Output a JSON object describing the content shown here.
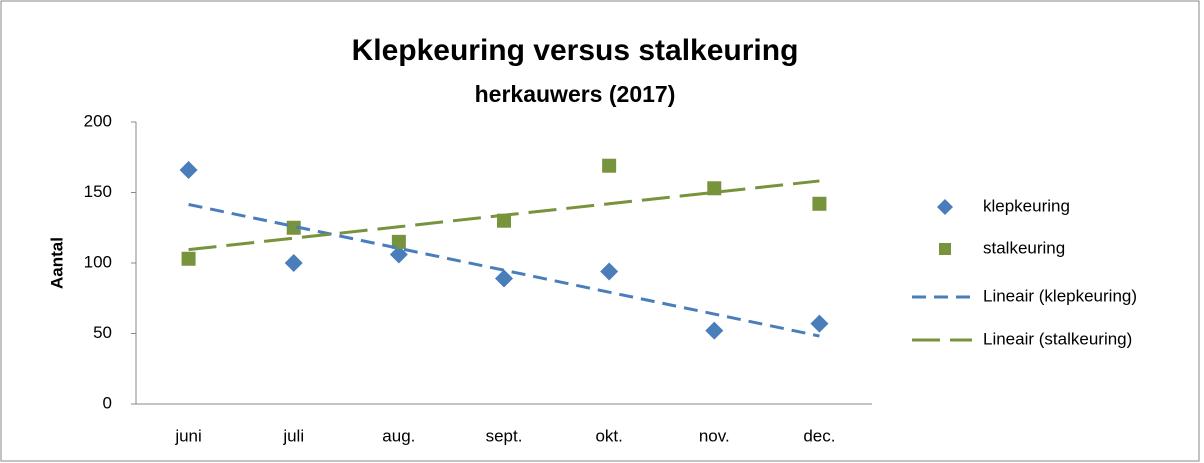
{
  "chart_data": {
    "type": "scatter",
    "title": "Klepkeuring versus stalkeuring",
    "subtitle": "herkauwers (2017)",
    "y_label": "Aantal",
    "categories": [
      "juni",
      "juli",
      "aug.",
      "sept.",
      "okt.",
      "nov.",
      "dec."
    ],
    "series": [
      {
        "name": "klepkeuring",
        "color": "#4a7ebb",
        "marker": "diamond",
        "values": [
          166,
          100,
          106,
          89,
          94,
          52,
          57
        ]
      },
      {
        "name": "stalkeuring",
        "color": "#77933c",
        "marker": "square",
        "values": [
          103,
          125,
          115,
          130,
          169,
          153,
          142
        ]
      },
      {
        "name": "Lineair (klepkeuring)",
        "color": "#4a7ebb",
        "dash": "short",
        "values": [
          141.5,
          126.0,
          110.4,
          94.9,
          79.3,
          63.8,
          48.2
        ]
      },
      {
        "name": "Lineair (stalkeuring)",
        "color": "#77933c",
        "dash": "long",
        "values": [
          109.5,
          117.6,
          125.7,
          133.9,
          142.0,
          150.1,
          158.2
        ]
      }
    ],
    "ylim": [
      0,
      200
    ],
    "yticks": [
      0,
      50,
      100,
      150,
      200
    ],
    "grid": false,
    "legend": "right"
  }
}
